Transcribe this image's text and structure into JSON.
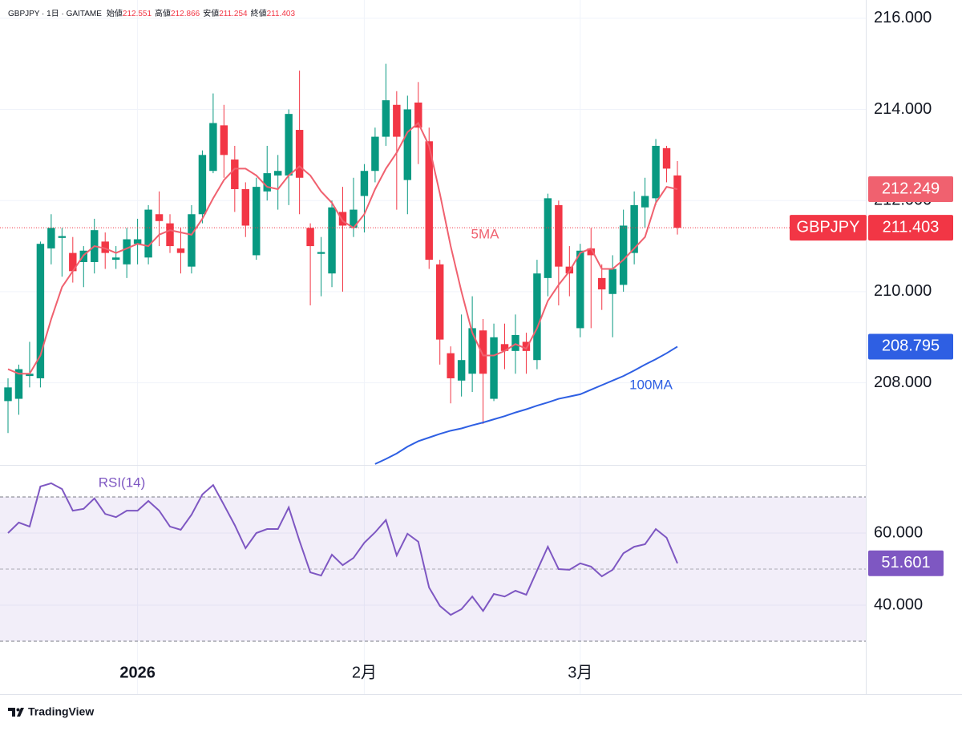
{
  "chart_data": [
    {
      "type": "candlestick",
      "symbol": "GBPJPY",
      "interval": "1日",
      "source": "GAITAME",
      "ohlc_labels": [
        "始値",
        "高値",
        "安値",
        "終値"
      ],
      "categories": [
        null,
        null,
        null,
        null,
        null,
        null,
        null,
        null,
        null,
        null,
        null,
        null,
        "2026",
        null,
        null,
        null,
        null,
        null,
        null,
        null,
        null,
        null,
        null,
        null,
        null,
        null,
        null,
        null,
        null,
        null,
        null,
        null,
        null,
        "2月",
        null,
        null,
        null,
        null,
        null,
        null,
        null,
        null,
        null,
        null,
        null,
        null,
        null,
        null,
        null,
        null,
        null,
        null,
        null,
        "3月",
        null,
        null,
        null,
        null,
        null,
        null,
        null,
        null,
        null
      ],
      "open": [
        207.6,
        207.65,
        208.15,
        208.1,
        210.95,
        211.18,
        210.85,
        210.65,
        210.65,
        211.1,
        210.7,
        210.6,
        211.05,
        210.75,
        211.7,
        211.5,
        210.95,
        210.55,
        211.7,
        212.65,
        213.65,
        212.9,
        212.25,
        210.8,
        212.2,
        212.55,
        212.55,
        213.55,
        211.4,
        210.83,
        210.4,
        211.75,
        211.4,
        212.1,
        212.65,
        213.4,
        214.1,
        212.45,
        214.15,
        213.3,
        210.6,
        208.65,
        208.05,
        208.2,
        209.15,
        207.65,
        208.85,
        208.7,
        208.9,
        208.5,
        210.3,
        211.9,
        210.55,
        209.2,
        210.95,
        210.3,
        209.95,
        210.15,
        210.85,
        211.85,
        212.05,
        213.15,
        212.551
      ],
      "high": [
        208.1,
        208.4,
        208.9,
        211.1,
        211.7,
        211.4,
        211.2,
        211.0,
        211.6,
        211.3,
        211.0,
        211.4,
        211.6,
        211.9,
        212.2,
        211.7,
        211.4,
        211.9,
        213.1,
        214.35,
        214.1,
        213.2,
        212.4,
        212.5,
        213.2,
        213.0,
        214.0,
        214.85,
        211.5,
        211.2,
        212.0,
        212.3,
        212.5,
        212.8,
        213.6,
        215.0,
        214.4,
        214.3,
        214.6,
        213.6,
        210.7,
        208.8,
        209.5,
        209.9,
        209.4,
        209.3,
        209.3,
        209.5,
        209.1,
        210.7,
        212.15,
        212.0,
        211.0,
        211.05,
        211.4,
        210.6,
        210.8,
        211.8,
        212.2,
        212.5,
        213.35,
        213.2,
        212.866
      ],
      "low": [
        206.9,
        207.3,
        207.9,
        207.9,
        210.6,
        210.33,
        210.2,
        210.1,
        210.4,
        210.5,
        210.5,
        210.3,
        210.6,
        210.6,
        211.0,
        210.85,
        210.4,
        210.4,
        211.5,
        212.6,
        212.5,
        211.75,
        211.2,
        210.7,
        212.0,
        211.8,
        211.9,
        211.7,
        209.7,
        209.9,
        210.1,
        210.0,
        211.2,
        211.3,
        212.4,
        213.2,
        211.8,
        211.7,
        212.8,
        210.5,
        208.4,
        207.55,
        207.7,
        207.8,
        207.1,
        207.6,
        208.3,
        208.2,
        208.2,
        208.3,
        209.9,
        209.7,
        209.9,
        209.0,
        209.2,
        209.6,
        209.0,
        210.0,
        210.6,
        211.4,
        211.9,
        212.4,
        211.254
      ],
      "close": [
        207.9,
        208.3,
        208.2,
        211.05,
        211.4,
        211.22,
        210.45,
        210.9,
        211.35,
        210.85,
        210.75,
        211.15,
        211.15,
        211.8,
        211.55,
        211.0,
        210.85,
        211.7,
        213.0,
        213.7,
        213.0,
        212.25,
        211.45,
        212.3,
        212.6,
        212.65,
        213.9,
        212.5,
        211.0,
        210.87,
        211.85,
        211.45,
        211.8,
        212.65,
        213.4,
        214.2,
        213.4,
        214.0,
        213.6,
        210.7,
        208.95,
        208.1,
        208.5,
        209.2,
        208.2,
        209.0,
        208.7,
        209.05,
        208.7,
        210.4,
        212.05,
        210.55,
        210.4,
        210.9,
        210.8,
        210.05,
        210.5,
        211.45,
        211.9,
        212.1,
        213.2,
        212.7,
        211.403
      ],
      "up_color": "#089981",
      "down_color": "#f23645",
      "ma": [
        {
          "name": "5MA",
          "color": "#f0616f",
          "values": [
            208.3,
            208.2,
            208.2,
            208.6,
            209.4,
            210.1,
            210.45,
            210.8,
            211.0,
            210.95,
            210.85,
            210.95,
            211.05,
            211.0,
            211.25,
            211.35,
            211.3,
            211.25,
            211.6,
            212.05,
            212.45,
            212.7,
            212.7,
            212.55,
            212.3,
            212.25,
            212.55,
            212.75,
            212.55,
            212.2,
            211.95,
            211.55,
            211.4,
            211.7,
            212.25,
            212.7,
            213.05,
            213.5,
            213.7,
            213.2,
            212.15,
            211.0,
            210.0,
            209.1,
            208.6,
            208.6,
            208.7,
            208.85,
            208.75,
            209.2,
            209.8,
            210.15,
            210.45,
            210.85,
            210.95,
            210.5,
            210.5,
            210.7,
            210.95,
            211.2,
            211.95,
            212.3,
            212.249
          ]
        },
        {
          "name": "100MA",
          "color": "#2e5fe3",
          "values": [
            null,
            null,
            null,
            null,
            null,
            null,
            null,
            null,
            null,
            null,
            null,
            null,
            null,
            null,
            null,
            null,
            null,
            null,
            null,
            null,
            null,
            null,
            null,
            null,
            null,
            null,
            null,
            null,
            null,
            null,
            null,
            null,
            null,
            null,
            206.22,
            206.33,
            206.45,
            206.6,
            206.72,
            206.8,
            206.88,
            206.95,
            207.0,
            207.07,
            207.13,
            207.2,
            207.27,
            207.35,
            207.42,
            207.5,
            207.57,
            207.65,
            207.7,
            207.75,
            207.85,
            207.95,
            208.05,
            208.15,
            208.27,
            208.4,
            208.52,
            208.65,
            208.795
          ]
        }
      ],
      "ylim": [
        206.2,
        216.4
      ],
      "yticks": [
        {
          "value": 208,
          "label": "208.000"
        },
        {
          "value": 210,
          "label": "210.000"
        },
        {
          "value": 212,
          "label": "212.000"
        },
        {
          "value": 214,
          "label": "214.000"
        },
        {
          "value": 216,
          "label": "216.000"
        }
      ],
      "grid": true,
      "brand": "TradingView"
    },
    {
      "type": "line",
      "name": "RSI(14)",
      "color": "#7e57c2",
      "values": [
        60.0,
        62.9,
        61.8,
        72.9,
        73.8,
        72.2,
        66.2,
        66.7,
        69.6,
        65.3,
        64.4,
        66.2,
        66.2,
        68.9,
        66.2,
        61.8,
        60.9,
        65.1,
        70.7,
        73.3,
        67.8,
        62.2,
        55.8,
        60.0,
        61.1,
        61.1,
        67.1,
        57.8,
        49.1,
        48.2,
        54.0,
        51.1,
        53.1,
        57.3,
        60.2,
        63.6,
        53.8,
        59.8,
        57.6,
        44.9,
        39.8,
        37.3,
        38.9,
        42.4,
        38.4,
        43.1,
        42.4,
        44.0,
        42.9,
        49.6,
        56.2,
        50.0,
        49.8,
        51.6,
        50.7,
        48.0,
        49.8,
        54.4,
        56.2,
        56.9,
        61.1,
        58.7,
        51.601
      ],
      "band": [
        30,
        70
      ],
      "midline": 50,
      "ylim": [
        25.56,
        78.89
      ],
      "yticks": [
        {
          "value": 40,
          "label": "40.000"
        },
        {
          "value": 60,
          "label": "60.000"
        }
      ],
      "grid": true
    }
  ]
}
